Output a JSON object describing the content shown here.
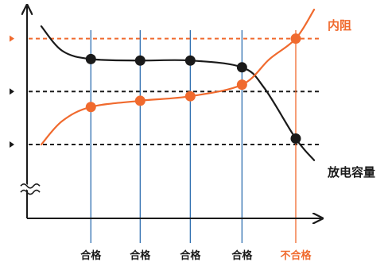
{
  "chart_data": {
    "type": "line",
    "title": "",
    "xlabel": "",
    "ylabel": "",
    "x_range": [
      0,
      100
    ],
    "y_range": [
      0,
      100
    ],
    "grid": false,
    "colors": {
      "capacity": "#1a1a1a",
      "resistance": "#f06a2e",
      "ok_line": "#2f6fb0",
      "fail_line": "#f06a2e",
      "ref_line": "#1a1a1a",
      "ref_line_top": "#f06a2e",
      "axis": "#1a1a1a"
    },
    "reference_levels": [
      {
        "y": 85.9,
        "highlight": true
      },
      {
        "y": 60.3,
        "highlight": false
      },
      {
        "y": 34.6,
        "highlight": false
      }
    ],
    "checkpoints": [
      {
        "x": 21.9,
        "label": "合格",
        "pass": true
      },
      {
        "x": 40.7,
        "label": "合格",
        "pass": true
      },
      {
        "x": 59.8,
        "label": "合格",
        "pass": true
      },
      {
        "x": 79.5,
        "label": "合格",
        "pass": true
      },
      {
        "x": 100.0,
        "label": "不合格",
        "pass": false
      }
    ],
    "series": [
      {
        "name": "放电容量",
        "color": "#1a1a1a",
        "curve": [
          [
            3.0,
            91.9
          ],
          [
            11.0,
            80.0
          ],
          [
            21.9,
            76.0
          ],
          [
            40.7,
            75.3
          ],
          [
            59.8,
            75.3
          ],
          [
            79.5,
            72.0
          ],
          [
            88.0,
            62.0
          ],
          [
            100.0,
            37.5
          ],
          [
            107.0,
            27.0
          ]
        ],
        "points": [
          [
            21.9,
            76.0
          ],
          [
            40.7,
            75.3
          ],
          [
            59.8,
            75.3
          ],
          [
            79.5,
            72.0
          ],
          [
            100.0,
            37.5
          ]
        ]
      },
      {
        "name": "内阻",
        "color": "#f06a2e",
        "curve": [
          [
            3.0,
            34.6
          ],
          [
            11.0,
            46.0
          ],
          [
            21.9,
            52.8
          ],
          [
            40.7,
            55.8
          ],
          [
            59.8,
            58.0
          ],
          [
            79.5,
            63.6
          ],
          [
            90.0,
            76.0
          ],
          [
            100.0,
            85.9
          ],
          [
            107.0,
            100.0
          ]
        ],
        "points": [
          [
            21.9,
            52.8
          ],
          [
            40.7,
            55.8
          ],
          [
            59.8,
            58.0
          ],
          [
            79.5,
            63.6
          ],
          [
            100.0,
            85.9
          ]
        ]
      }
    ]
  }
}
